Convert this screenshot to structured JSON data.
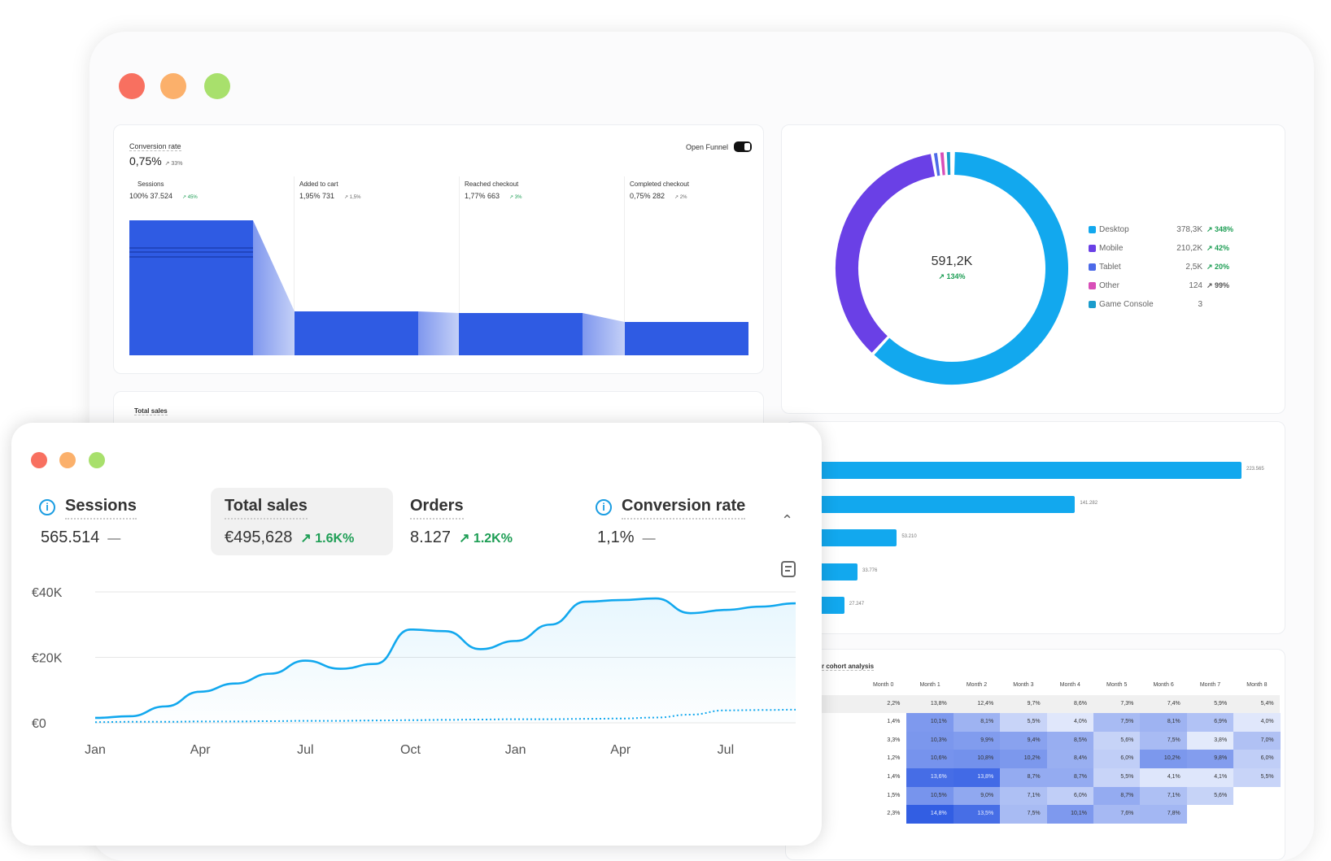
{
  "colors": {
    "red": "#f87060",
    "orange": "#fbb06b",
    "green": "#a8e06c",
    "primary_bar": "#2f5be3",
    "sky": "#12a8ee",
    "up": "#1e9e55"
  },
  "funnel": {
    "title": "Conversion rate",
    "value": "0,75%",
    "change": "↗ 33%",
    "toggle_label": "Open Funnel",
    "toggle_on": true,
    "steps": [
      {
        "label": "Sessions",
        "value": "100% 37.524",
        "change": "↗ 45%",
        "change_up": true
      },
      {
        "label": "Added to cart",
        "value": "1,95% 731",
        "change": "↗ 1,5%",
        "change_up": false
      },
      {
        "label": "Reached checkout",
        "value": "1,77% 663",
        "change": "↗ 3%",
        "change_up": true
      },
      {
        "label": "Completed checkout",
        "value": "0,75% 282",
        "change": "↗ 2%",
        "change_up": false
      }
    ]
  },
  "devices": {
    "total": "591,2K",
    "total_change": "↗ 134%",
    "chart_data": {
      "type": "pie",
      "variant": "donut",
      "items": [
        {
          "name": "Desktop",
          "value": 378300,
          "label": "378,3K",
          "change": "↗ 348%",
          "change_up": true,
          "color": "#12a8ee"
        },
        {
          "name": "Mobile",
          "value": 210200,
          "label": "210,2K",
          "change": "↗ 42%",
          "change_up": true,
          "color": "#6a40e6"
        },
        {
          "name": "Tablet",
          "value": 2500,
          "label": "2,5K",
          "change": "↗ 20%",
          "change_up": true,
          "color": "#4d6ae8"
        },
        {
          "name": "Other",
          "value": 124,
          "label": "124",
          "change": "↗ 99%",
          "change_up": false,
          "color": "#d84fb8"
        },
        {
          "name": "Game Console",
          "value": 3,
          "label": "3",
          "change": "",
          "change_up": false,
          "color": "#1a9ccc"
        }
      ]
    }
  },
  "back_sales": {
    "title": "Total sales"
  },
  "bars": {
    "chart_data": {
      "type": "bar",
      "orientation": "horizontal",
      "values": [
        223565,
        141282,
        53210,
        33776,
        27247
      ],
      "labels": [
        "223.565",
        "141.282",
        "53.210",
        "33.776",
        "27.247"
      ]
    }
  },
  "cohort": {
    "title": "r cohort analysis",
    "chart_data": {
      "type": "heatmap",
      "columns": [
        "Month 0",
        "Month 1",
        "Month 2",
        "Month 3",
        "Month 4",
        "Month 5",
        "Month 6",
        "Month 7",
        "Month 8"
      ],
      "rows": [
        [
          "2,2%",
          "13,8%",
          "12,4%",
          "9,7%",
          "8,6%",
          "7,3%",
          "7,4%",
          "5,9%",
          "5,4%"
        ],
        [
          "1,4%",
          "10,1%",
          "8,1%",
          "5,5%",
          "4,0%",
          "7,5%",
          "8,1%",
          "6,9%",
          "4,0%"
        ],
        [
          "3,3%",
          "10,3%",
          "9,9%",
          "9,4%",
          "8,5%",
          "5,6%",
          "7,5%",
          "3,8%",
          "7,0%"
        ],
        [
          "1,2%",
          "10,6%",
          "10,8%",
          "10,2%",
          "8,4%",
          "6,0%",
          "10,2%",
          "9,8%",
          "6,0%"
        ],
        [
          "1,4%",
          "13,6%",
          "13,8%",
          "8,7%",
          "8,7%",
          "5,5%",
          "4,1%",
          "4,1%",
          "5,5%"
        ],
        [
          "1,5%",
          "10,5%",
          "9,0%",
          "7,1%",
          "6,0%",
          "8,7%",
          "7,1%",
          "5,6%",
          ""
        ],
        [
          "2,3%",
          "14,8%",
          "13,5%",
          "7,5%",
          "10,1%",
          "7,6%",
          "7,8%",
          "",
          ""
        ]
      ]
    }
  },
  "metrics": [
    {
      "label": "Sessions",
      "value": "565.514",
      "change": "—",
      "info": true
    },
    {
      "label": "Total sales",
      "value": "€495,628",
      "change": "↗ 1.6K%",
      "info": false,
      "selected": true
    },
    {
      "label": "Orders",
      "value": "8.127",
      "change": "↗ 1.2K%",
      "info": false
    },
    {
      "label": "Conversion rate",
      "value": "1,1%",
      "change": "—",
      "info": true
    }
  ],
  "sales_chart": {
    "chart_data": {
      "type": "line",
      "ylim": [
        0,
        40000
      ],
      "yticks": [
        "€0",
        "€20K",
        "€40K"
      ],
      "xticks": [
        "Jan",
        "Apr",
        "Jul",
        "Oct",
        "Jan",
        "Apr",
        "Jul"
      ],
      "series": [
        {
          "values": [
            1500,
            2000,
            5000,
            9500,
            12000,
            15000,
            19000,
            16500,
            18000,
            28500,
            28000,
            22500,
            25000,
            30000,
            37000,
            37500,
            38000,
            33500,
            34500,
            35500,
            36500
          ],
          "style": "solid",
          "color": "#12a8ee"
        },
        {
          "values": [
            200,
            300,
            300,
            400,
            400,
            500,
            600,
            600,
            700,
            800,
            900,
            1000,
            1100,
            1100,
            1200,
            1300,
            1600,
            2500,
            3800,
            3900,
            4000
          ],
          "style": "dotted",
          "color": "#12a8ee"
        }
      ]
    }
  }
}
